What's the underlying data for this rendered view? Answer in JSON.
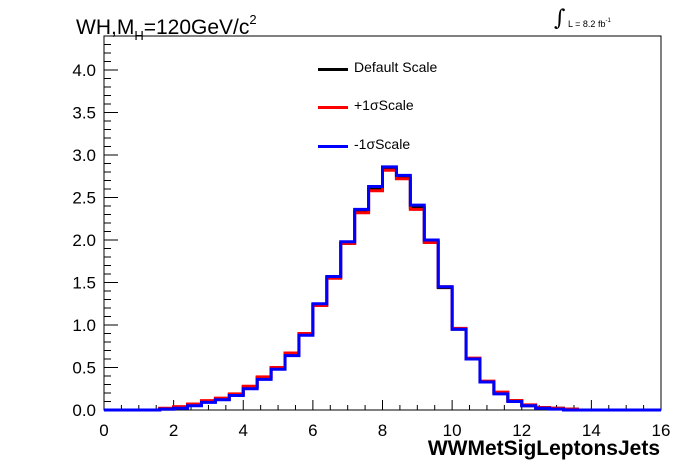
{
  "chart_data": {
    "type": "line",
    "title_main": "WH,M",
    "title_sub": "H",
    "title_rest": "=120GeV/c",
    "title_sup": "2",
    "lumi_text": "L = 8.2 fb",
    "lumi_sup": "-1",
    "xlabel": "WWMetSigLeptonsJets",
    "ylabel": "",
    "xlim": [
      0,
      16
    ],
    "ylim": [
      0,
      4.4
    ],
    "x_ticks": [
      "0",
      "2",
      "4",
      "6",
      "8",
      "10",
      "12",
      "14",
      "16"
    ],
    "y_ticks": [
      "0.0",
      "0.5",
      "1.0",
      "1.5",
      "2.0",
      "2.5",
      "3.0",
      "3.5",
      "4.0"
    ],
    "bin_edges": [
      0,
      0.4,
      0.8,
      1.2,
      1.6,
      2.0,
      2.4,
      2.8,
      3.2,
      3.6,
      4.0,
      4.4,
      4.8,
      5.2,
      5.6,
      6.0,
      6.4,
      6.8,
      7.2,
      7.6,
      8.0,
      8.4,
      8.8,
      9.2,
      9.6,
      10.0,
      10.4,
      10.8,
      11.2,
      11.6,
      12.0,
      12.4,
      12.8,
      13.2,
      13.6,
      14.0,
      14.4,
      14.8,
      15.2,
      15.6,
      16.0
    ],
    "legend_position": "top-center",
    "series": [
      {
        "name": "Default Scale",
        "color": "#000000",
        "values": [
          0.0,
          0.0,
          0.0,
          0.0,
          0.01,
          0.03,
          0.06,
          0.1,
          0.13,
          0.18,
          0.27,
          0.38,
          0.5,
          0.67,
          0.9,
          1.24,
          1.56,
          1.96,
          2.33,
          2.6,
          2.83,
          2.73,
          2.38,
          1.98,
          1.44,
          0.95,
          0.6,
          0.33,
          0.2,
          0.11,
          0.05,
          0.03,
          0.02,
          0.01,
          0.0,
          0.0,
          0.0,
          0.0,
          0.0,
          0.0
        ]
      },
      {
        "name": "+1σScale",
        "color": "#ff0000",
        "values": [
          0.0,
          0.0,
          0.0,
          0.0,
          0.02,
          0.04,
          0.07,
          0.11,
          0.14,
          0.19,
          0.28,
          0.39,
          0.5,
          0.67,
          0.9,
          1.23,
          1.55,
          1.96,
          2.32,
          2.58,
          2.82,
          2.72,
          2.36,
          1.97,
          1.45,
          0.96,
          0.61,
          0.34,
          0.21,
          0.11,
          0.06,
          0.03,
          0.02,
          0.01,
          0.0,
          0.0,
          0.0,
          0.0,
          0.0,
          0.0
        ]
      },
      {
        "name": "-1σScale",
        "color": "#0000ff",
        "values": [
          0.0,
          0.0,
          0.0,
          0.0,
          0.01,
          0.02,
          0.05,
          0.09,
          0.12,
          0.17,
          0.25,
          0.36,
          0.48,
          0.64,
          0.88,
          1.25,
          1.57,
          1.98,
          2.36,
          2.63,
          2.86,
          2.76,
          2.41,
          2.0,
          1.45,
          0.95,
          0.6,
          0.33,
          0.19,
          0.1,
          0.05,
          0.02,
          0.01,
          0.0,
          0.0,
          0.0,
          0.0,
          0.0,
          0.0,
          0.0
        ]
      }
    ]
  }
}
